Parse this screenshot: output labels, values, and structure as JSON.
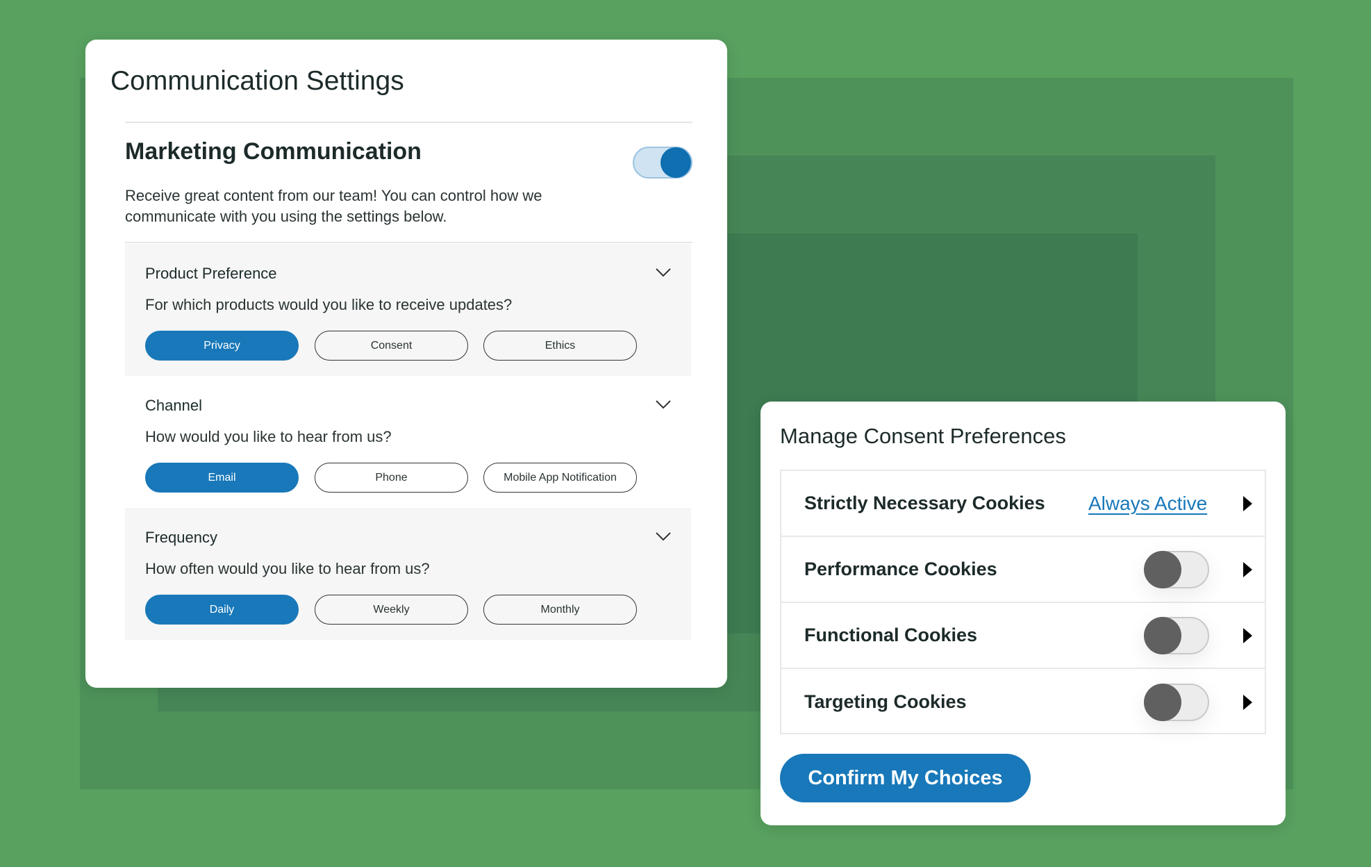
{
  "colors": {
    "accent": "#1878b9",
    "background": "#58a15f",
    "toggle_off_knob": "#606060"
  },
  "comm": {
    "title": "Communication Settings",
    "marketing": {
      "title": "Marketing Communication",
      "description": "Receive great content from our team! You can control how we communicate with you using the settings below.",
      "toggle_on": true
    },
    "sections": [
      {
        "title": "Product Preference",
        "question": "For which products would you like to receive updates?",
        "options": [
          "Privacy",
          "Consent",
          "Ethics"
        ],
        "selected": "Privacy"
      },
      {
        "title": "Channel",
        "question": "How would you like to hear from us?",
        "options": [
          "Email",
          "Phone",
          "Mobile App Notification"
        ],
        "selected": "Email"
      },
      {
        "title": "Frequency",
        "question": "How often would you like to hear from us?",
        "options": [
          "Daily",
          "Weekly",
          "Monthly"
        ],
        "selected": "Daily"
      }
    ]
  },
  "consent": {
    "title": "Manage Consent Preferences",
    "rows": [
      {
        "label": "Strictly Necessary Cookies",
        "status": "Always Active"
      },
      {
        "label": "Performance Cookies",
        "toggle_on": false
      },
      {
        "label": "Functional Cookies",
        "toggle_on": false
      },
      {
        "label": "Targeting Cookies",
        "toggle_on": false
      }
    ],
    "confirm_label": "Confirm My Choices"
  }
}
